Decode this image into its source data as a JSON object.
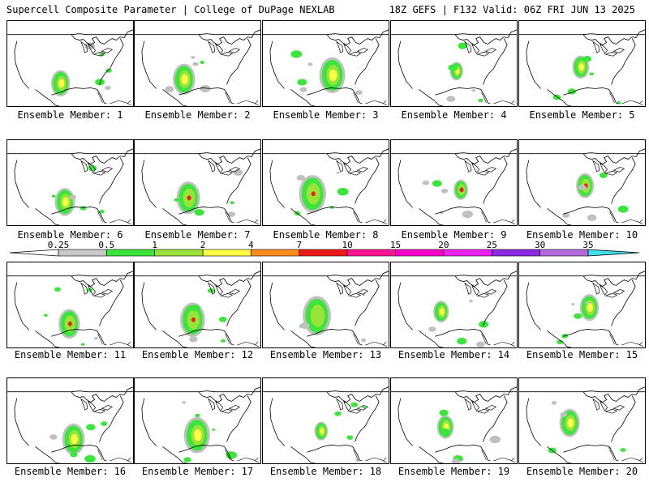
{
  "header": {
    "left": "Supercell Composite Parameter | College of DuPage NEXLAB",
    "right": "18Z GEFS | F132 Valid: 06Z FRI JUN 13 2025"
  },
  "member_prefix": "Ensemble Member: ",
  "members": [
    "1",
    "2",
    "3",
    "4",
    "5",
    "6",
    "7",
    "8",
    "9",
    "10",
    "11",
    "12",
    "13",
    "14",
    "15",
    "16",
    "17",
    "18",
    "19",
    "20"
  ],
  "colorbar": {
    "ticks": [
      "0.25",
      "0.5",
      "1",
      "2",
      "4",
      "7",
      "10",
      "15",
      "20",
      "25",
      "30",
      "35"
    ],
    "colors": [
      "#c8c8c8",
      "#39e639",
      "#9be33a",
      "#ffff44",
      "#ff8c1a",
      "#f01919",
      "#ff1493",
      "#ff00cc",
      "#ee22ee",
      "#8a2be2",
      "#b469dd",
      "#40e0e8"
    ]
  },
  "colors": {
    "outline": "#000000",
    "scp_gray": "#c0c0c0",
    "scp_green": "#39e639",
    "scp_lime": "#9be33a",
    "scp_yellow": "#ffff44",
    "scp_orange": "#ff8c1a",
    "scp_red": "#f01919",
    "scp_magenta": "#ff1493"
  }
}
